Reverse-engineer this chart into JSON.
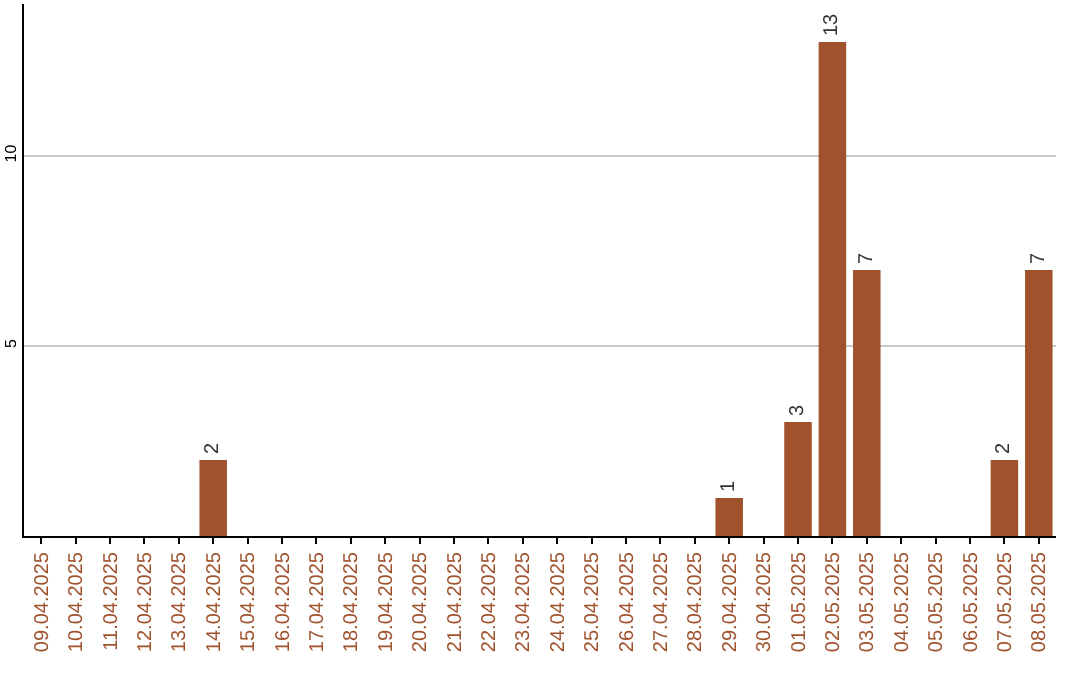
{
  "chart_data": {
    "type": "bar",
    "categories": [
      "09.04.2025",
      "10.04.2025",
      "11.04.2025",
      "12.04.2025",
      "13.04.2025",
      "14.04.2025",
      "15.04.2025",
      "16.04.2025",
      "17.04.2025",
      "18.04.2025",
      "19.04.2025",
      "20.04.2025",
      "21.04.2025",
      "22.04.2025",
      "23.04.2025",
      "24.04.2025",
      "25.04.2025",
      "26.04.2025",
      "27.04.2025",
      "28.04.2025",
      "29.04.2025",
      "30.04.2025",
      "01.05.2025",
      "02.05.2025",
      "03.05.2025",
      "04.05.2025",
      "05.05.2025",
      "06.05.2025",
      "07.05.2025",
      "08.05.2025"
    ],
    "values": [
      0,
      0,
      0,
      0,
      0,
      2,
      0,
      0,
      0,
      0,
      0,
      0,
      0,
      0,
      0,
      0,
      0,
      0,
      0,
      0,
      1,
      0,
      3,
      13,
      7,
      0,
      0,
      0,
      2,
      7
    ],
    "value_labels": [
      null,
      null,
      null,
      null,
      null,
      "2",
      null,
      null,
      null,
      null,
      null,
      null,
      null,
      null,
      null,
      null,
      null,
      null,
      null,
      null,
      "1",
      null,
      "3",
      "13",
      "7",
      null,
      null,
      null,
      "2",
      "7"
    ],
    "color": "#a0522d",
    "ylim": [
      0,
      14
    ],
    "yticks": [
      5,
      10
    ],
    "grid": "y"
  }
}
